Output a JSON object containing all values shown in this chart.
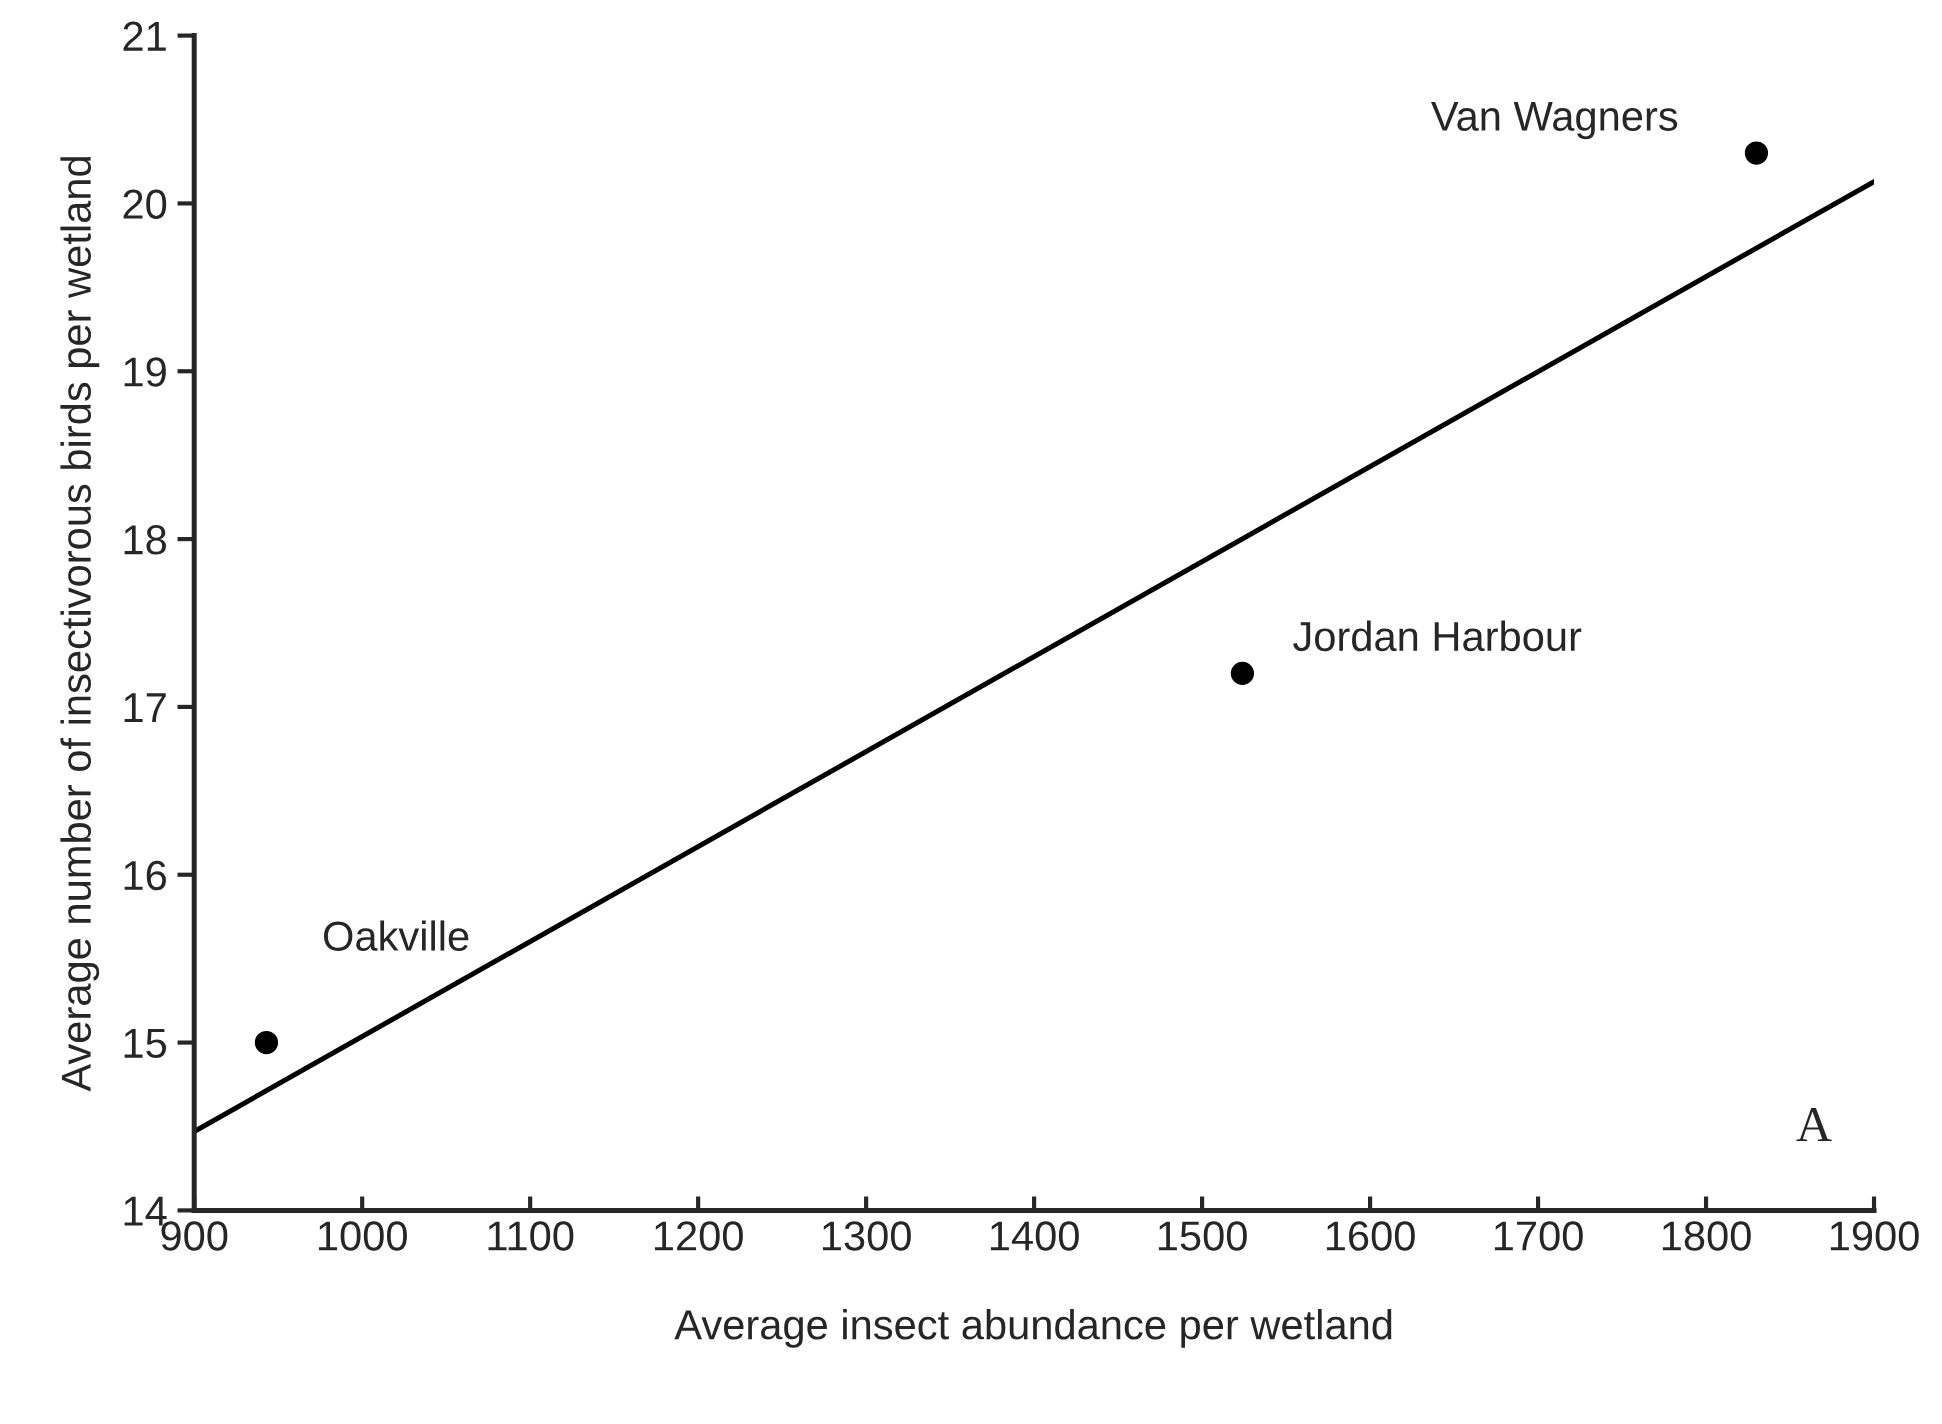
{
  "chart_data": {
    "type": "scatter",
    "xlabel": "Average insect abundance per wetland",
    "ylabel": "Average number of insectivorous birds per wetland",
    "xlim": [
      900,
      1900
    ],
    "xticks": [
      900,
      1000,
      1100,
      1200,
      1300,
      1400,
      1500,
      1600,
      1700,
      1800,
      1900
    ],
    "ylim": [
      14,
      21
    ],
    "yticks": [
      14,
      15,
      16,
      17,
      18,
      19,
      20,
      21
    ],
    "grid": false,
    "marker": "circle",
    "series": [
      {
        "color": "#000000",
        "x": [
          943,
          1524,
          1830
        ],
        "values": [
          15.0,
          17.2,
          20.3
        ]
      },
      {
        "type": "line",
        "color": "#000000",
        "line_style": "solid",
        "marker": "none",
        "x": [
          900,
          1900
        ],
        "values": [
          14.47,
          20.13
        ]
      }
    ],
    "annotations": [
      {
        "text": "Oakville",
        "x": 943,
        "y": 15.0
      },
      {
        "text": "Jordan Harbour",
        "x": 1524,
        "y": 17.2
      },
      {
        "text": "Van Wagners",
        "x": 1830,
        "y": 20.3
      },
      "A"
    ]
  }
}
